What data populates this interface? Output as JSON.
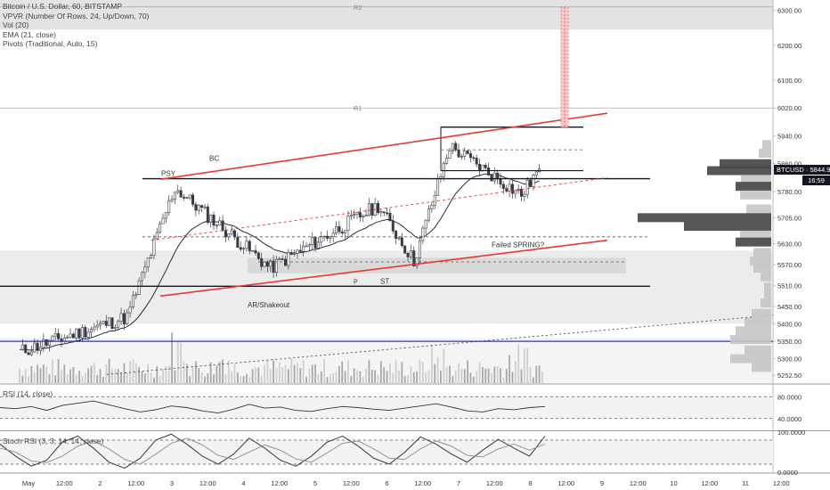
{
  "legend": {
    "symbol": "Bitcoin / U.S. Dollar, 60, BITSTAMP",
    "vpvr": "VPVR (Number Of Rows, 24, Up/Down, 70)",
    "vol": "Vol (20)",
    "ema": "EMA (21, close)",
    "pivots": "Pivots (Traditional, Auto, 15)"
  },
  "rsi_title": "RSI (14, close)",
  "stoch_title": "Stoch RSI (3, 3, 14, 14, close)",
  "price_badge": {
    "label": "BTCUSD · 5844.90",
    "countdown": "16:59"
  },
  "annotations": {
    "psy": "PSY",
    "bc": "BC",
    "ar": "AR/Shakeout",
    "st": "ST",
    "p": "P",
    "spring": "Failed SPRING?",
    "r1": "R1",
    "r2": "R2"
  },
  "colors": {
    "up": "#ffffff",
    "down": "#363a45",
    "wick": "#363a45",
    "channel": "#e53935",
    "support": "#131722",
    "blue_line": "#2a2ed1",
    "zone": "#e3e3e3",
    "vpvr_light": "#c5c5c5",
    "vpvr_dark": "#444444"
  },
  "chart_data": [
    {
      "type": "candlestick",
      "title": "Bitcoin / U.S. Dollar, 60, BITSTAMP",
      "ylim": [
        5230,
        6330
      ],
      "y_ticks": [
        "6300.00",
        "6200.00",
        "6100.00",
        "6020.00",
        "5940.00",
        "5860.00",
        "5780.00",
        "5705.00",
        "5630.00",
        "5570.00",
        "5510.00",
        "5450.00",
        "5400.00",
        "5350.00",
        "5300.00",
        "5252.50"
      ],
      "x_ticks": [
        "May",
        "12:00",
        "2",
        "12:00",
        "3",
        "12:00",
        "4",
        "12:00",
        "5",
        "12:00",
        "6",
        "12:00",
        "7",
        "12:00",
        "8",
        "12:00",
        "9",
        "12:00",
        "10",
        "12:00",
        "11",
        "12:00"
      ],
      "last_price": 5844.9,
      "levels": {
        "R1": 6020,
        "R2": 6310
      },
      "ohlc_segments": [
        {
          "from": "May 1 00:00",
          "to": "May 2 12:00",
          "open": 5320,
          "close": 5420
        },
        {
          "from": "May 2 12:00",
          "to": "May 3 04:00",
          "open": 5420,
          "close": 5790
        },
        {
          "from": "May 3 04:00",
          "to": "May 4 12:00",
          "open": 5790,
          "close": 5560
        },
        {
          "from": "May 4 12:00",
          "to": "May 6 00:00",
          "open": 5560,
          "close": 5740
        },
        {
          "from": "May 6 00:00",
          "to": "May 6 12:00",
          "open": 5740,
          "close": 5580
        },
        {
          "from": "May 6 12:00",
          "to": "May 7 00:00",
          "open": 5580,
          "close": 5910
        },
        {
          "from": "May 7 00:00",
          "to": "May 8 00:00",
          "open": 5910,
          "close": 5770
        },
        {
          "from": "May 8 00:00",
          "to": "May 8 06:00",
          "open": 5770,
          "close": 5845
        }
      ]
    },
    {
      "type": "line",
      "title": "RSI (14, close)",
      "ylim": [
        20,
        100
      ],
      "y_ticks": [
        "80.0000",
        "40.0000"
      ],
      "series": [
        {
          "name": "RSI",
          "values": [
            60,
            58,
            62,
            55,
            64,
            68,
            72,
            65,
            58,
            52,
            56,
            63,
            60,
            54,
            50,
            57,
            66,
            59,
            61,
            55,
            53,
            58,
            62,
            60,
            57,
            55,
            59,
            63,
            67,
            61,
            54,
            52,
            58,
            56,
            60,
            62
          ]
        }
      ]
    },
    {
      "type": "line",
      "title": "Stoch RSI (3, 3, 14, 14, close)",
      "ylim": [
        0,
        100
      ],
      "y_ticks": [
        "100.0000",
        "0.0000"
      ],
      "series": [
        {
          "name": "K",
          "values": [
            70,
            40,
            15,
            30,
            75,
            90,
            60,
            25,
            10,
            35,
            80,
            95,
            70,
            40,
            20,
            45,
            85,
            60,
            30,
            15,
            40,
            75,
            90,
            65,
            35,
            20,
            50,
            88,
            70,
            45,
            25,
            55,
            82,
            60,
            40,
            90
          ]
        },
        {
          "name": "D",
          "values": [
            60,
            50,
            28,
            24,
            40,
            65,
            78,
            58,
            32,
            20,
            45,
            72,
            85,
            68,
            42,
            32,
            50,
            68,
            55,
            33,
            25,
            48,
            72,
            78,
            58,
            35,
            32,
            58,
            78,
            65,
            42,
            38,
            58,
            70,
            55,
            70
          ]
        }
      ]
    }
  ]
}
